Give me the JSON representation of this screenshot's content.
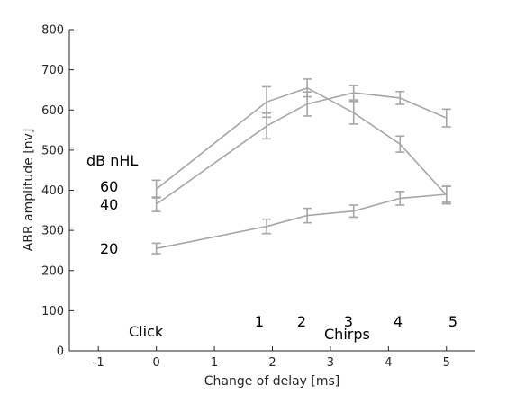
{
  "chart_data": {
    "type": "line",
    "xlabel": "Change of delay [ms]",
    "ylabel": "ABR amplitude [nv]",
    "xlim": [
      -1.5,
      5.5
    ],
    "ylim": [
      0,
      800
    ],
    "xticks": [
      -1,
      0,
      1,
      2,
      3,
      4,
      5
    ],
    "yticks": [
      0,
      100,
      200,
      300,
      400,
      500,
      600,
      700,
      800
    ],
    "grid": false,
    "line_color": "#a6a6a6",
    "series": [
      {
        "label": "60",
        "x": [
          0,
          1.9,
          2.6,
          3.4,
          4.2,
          5.0
        ],
        "y": [
          403,
          620,
          655,
          593,
          515,
          388
        ],
        "err": [
          22,
          38,
          22,
          28,
          20,
          22
        ]
      },
      {
        "label": "40",
        "x": [
          0,
          1.9,
          2.6,
          3.4,
          4.2,
          5.0
        ],
        "y": [
          365,
          560,
          615,
          643,
          630,
          580
        ],
        "err": [
          18,
          32,
          30,
          18,
          16,
          22
        ]
      },
      {
        "label": "20",
        "x": [
          0,
          1.9,
          2.6,
          3.4,
          4.2,
          5.0
        ],
        "y": [
          255,
          310,
          337,
          348,
          380,
          390
        ],
        "err": [
          13,
          18,
          18,
          15,
          17,
          20
        ]
      }
    ],
    "annotations": {
      "legend_title": "dB nHL",
      "click": "Click",
      "chirps": "Chirps",
      "chirp_numbers": [
        "1",
        "2",
        "3",
        "4",
        "5"
      ]
    }
  }
}
